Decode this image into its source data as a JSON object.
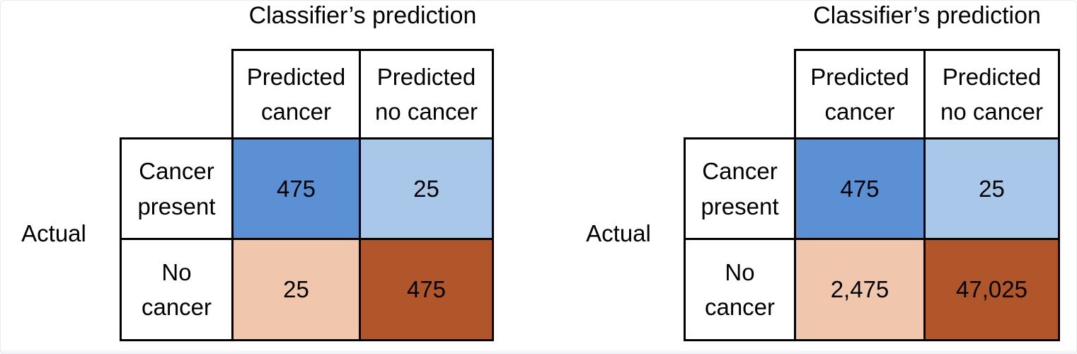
{
  "frame": {
    "background": "#ffffff"
  },
  "colors": {
    "true_positive_fill": "#5B90D4",
    "false_negative_fill": "#A9C7E9",
    "false_positive_fill": "#F0C7AD",
    "true_negative_fill": "#B1552B",
    "grid_border": "#000000",
    "text": "#000000"
  },
  "matrices": [
    {
      "title": "Classifier’s prediction",
      "axis_label": "Actual",
      "col_headers": [
        "Predicted cancer",
        "Predicted no cancer"
      ],
      "row_headers": [
        "Cancer present",
        "No cancer"
      ],
      "cells": [
        [
          "475",
          "25"
        ],
        [
          "25",
          "475"
        ]
      ]
    },
    {
      "title": "Classifier’s prediction",
      "axis_label": "Actual",
      "col_headers": [
        "Predicted cancer",
        "Predicted no cancer"
      ],
      "row_headers": [
        "Cancer present",
        "No cancer"
      ],
      "cells": [
        [
          "475",
          "25"
        ],
        [
          "2,475",
          "47,025"
        ]
      ]
    }
  ],
  "chart_data": [
    {
      "type": "table",
      "title": "Classifier’s prediction",
      "row_axis_label": "Actual",
      "columns": [
        "Predicted cancer",
        "Predicted no cancer"
      ],
      "rows": [
        "Cancer present",
        "No cancer"
      ],
      "values": [
        [
          475,
          25
        ],
        [
          25,
          475
        ]
      ],
      "cell_colors": [
        [
          "#5B90D4",
          "#A9C7E9"
        ],
        [
          "#F0C7AD",
          "#B1552B"
        ]
      ]
    },
    {
      "type": "table",
      "title": "Classifier’s prediction",
      "row_axis_label": "Actual",
      "columns": [
        "Predicted cancer",
        "Predicted no cancer"
      ],
      "rows": [
        "Cancer present",
        "No cancer"
      ],
      "values": [
        [
          475,
          25
        ],
        [
          2475,
          47025
        ]
      ],
      "cell_colors": [
        [
          "#5B90D4",
          "#A9C7E9"
        ],
        [
          "#F0C7AD",
          "#B1552B"
        ]
      ]
    }
  ]
}
